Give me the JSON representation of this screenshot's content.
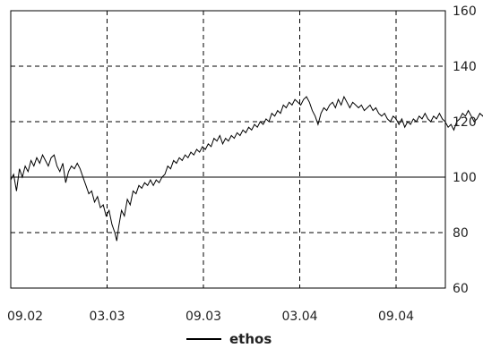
{
  "chart_data": {
    "type": "line",
    "title": "",
    "xlabel": "",
    "ylabel": "",
    "x_ticks": [
      "09.02",
      "03.03",
      "09.03",
      "03.04",
      "09.04"
    ],
    "xlim_index": [
      0,
      5.4
    ],
    "ylim": [
      60,
      160
    ],
    "y_ticks": [
      60,
      80,
      100,
      120,
      140,
      160
    ],
    "reference_line": 100,
    "grid": "dashed",
    "legend": "bottom-center",
    "series": [
      {
        "name": "ethos",
        "color": "#000000",
        "points": [
          [
            0.0,
            99
          ],
          [
            0.03,
            101
          ],
          [
            0.06,
            95
          ],
          [
            0.09,
            103
          ],
          [
            0.12,
            100
          ],
          [
            0.15,
            104
          ],
          [
            0.18,
            102
          ],
          [
            0.21,
            106
          ],
          [
            0.24,
            104
          ],
          [
            0.27,
            107
          ],
          [
            0.3,
            105
          ],
          [
            0.33,
            108
          ],
          [
            0.36,
            106
          ],
          [
            0.39,
            104
          ],
          [
            0.42,
            107
          ],
          [
            0.45,
            108
          ],
          [
            0.48,
            104
          ],
          [
            0.51,
            102
          ],
          [
            0.54,
            105
          ],
          [
            0.57,
            98
          ],
          [
            0.6,
            102
          ],
          [
            0.63,
            104
          ],
          [
            0.66,
            103
          ],
          [
            0.69,
            105
          ],
          [
            0.72,
            103
          ],
          [
            0.75,
            100
          ],
          [
            0.78,
            97
          ],
          [
            0.81,
            94
          ],
          [
            0.84,
            95
          ],
          [
            0.87,
            91
          ],
          [
            0.9,
            93
          ],
          [
            0.93,
            89
          ],
          [
            0.96,
            90
          ],
          [
            0.99,
            86
          ],
          [
            1.02,
            88
          ],
          [
            1.05,
            83
          ],
          [
            1.08,
            80
          ],
          [
            1.1,
            77
          ],
          [
            1.12,
            82
          ],
          [
            1.15,
            88
          ],
          [
            1.18,
            86
          ],
          [
            1.21,
            92
          ],
          [
            1.24,
            90
          ],
          [
            1.27,
            95
          ],
          [
            1.3,
            94
          ],
          [
            1.33,
            97
          ],
          [
            1.36,
            96
          ],
          [
            1.39,
            98
          ],
          [
            1.42,
            97
          ],
          [
            1.45,
            99
          ],
          [
            1.48,
            97
          ],
          [
            1.51,
            99
          ],
          [
            1.54,
            98
          ],
          [
            1.57,
            100
          ],
          [
            1.6,
            101
          ],
          [
            1.63,
            104
          ],
          [
            1.66,
            103
          ],
          [
            1.69,
            106
          ],
          [
            1.72,
            105
          ],
          [
            1.75,
            107
          ],
          [
            1.78,
            106
          ],
          [
            1.81,
            108
          ],
          [
            1.84,
            107
          ],
          [
            1.87,
            109
          ],
          [
            1.9,
            108
          ],
          [
            1.93,
            110
          ],
          [
            1.96,
            109
          ],
          [
            1.99,
            111
          ],
          [
            2.02,
            110
          ],
          [
            2.05,
            112
          ],
          [
            2.08,
            111
          ],
          [
            2.11,
            114
          ],
          [
            2.14,
            113
          ],
          [
            2.17,
            115
          ],
          [
            2.2,
            112
          ],
          [
            2.23,
            114
          ],
          [
            2.26,
            113
          ],
          [
            2.29,
            115
          ],
          [
            2.32,
            114
          ],
          [
            2.35,
            116
          ],
          [
            2.38,
            115
          ],
          [
            2.41,
            117
          ],
          [
            2.44,
            116
          ],
          [
            2.47,
            118
          ],
          [
            2.5,
            117
          ],
          [
            2.53,
            119
          ],
          [
            2.56,
            118
          ],
          [
            2.59,
            120
          ],
          [
            2.62,
            119
          ],
          [
            2.65,
            121
          ],
          [
            2.68,
            120
          ],
          [
            2.71,
            123
          ],
          [
            2.74,
            122
          ],
          [
            2.77,
            124
          ],
          [
            2.8,
            123
          ],
          [
            2.83,
            126
          ],
          [
            2.86,
            125
          ],
          [
            2.89,
            127
          ],
          [
            2.92,
            126
          ],
          [
            2.95,
            128
          ],
          [
            2.98,
            127
          ],
          [
            3.01,
            126
          ],
          [
            3.04,
            128
          ],
          [
            3.07,
            129
          ],
          [
            3.1,
            127
          ],
          [
            3.13,
            124
          ],
          [
            3.16,
            122
          ],
          [
            3.19,
            119
          ],
          [
            3.22,
            123
          ],
          [
            3.25,
            125
          ],
          [
            3.28,
            124
          ],
          [
            3.31,
            126
          ],
          [
            3.34,
            127
          ],
          [
            3.37,
            125
          ],
          [
            3.4,
            128
          ],
          [
            3.43,
            126
          ],
          [
            3.46,
            129
          ],
          [
            3.49,
            127
          ],
          [
            3.52,
            125
          ],
          [
            3.55,
            127
          ],
          [
            3.58,
            126
          ],
          [
            3.61,
            125
          ],
          [
            3.64,
            126
          ],
          [
            3.67,
            124
          ],
          [
            3.7,
            125
          ],
          [
            3.73,
            126
          ],
          [
            3.76,
            124
          ],
          [
            3.79,
            125
          ],
          [
            3.82,
            123
          ],
          [
            3.85,
            122
          ],
          [
            3.88,
            123
          ],
          [
            3.91,
            121
          ],
          [
            3.94,
            120
          ],
          [
            3.97,
            122
          ],
          [
            4.0,
            121
          ],
          [
            4.03,
            119
          ],
          [
            4.06,
            121
          ],
          [
            4.09,
            118
          ],
          [
            4.12,
            120
          ],
          [
            4.15,
            119
          ],
          [
            4.18,
            121
          ],
          [
            4.21,
            120
          ],
          [
            4.24,
            122
          ],
          [
            4.27,
            121
          ],
          [
            4.3,
            123
          ],
          [
            4.33,
            121
          ],
          [
            4.36,
            120
          ],
          [
            4.39,
            122
          ],
          [
            4.42,
            121
          ],
          [
            4.45,
            123
          ],
          [
            4.48,
            121
          ],
          [
            4.51,
            120
          ],
          [
            4.54,
            118
          ],
          [
            4.57,
            119
          ],
          [
            4.6,
            117
          ],
          [
            4.63,
            120
          ],
          [
            4.66,
            121
          ],
          [
            4.69,
            123
          ],
          [
            4.72,
            122
          ],
          [
            4.75,
            124
          ],
          [
            4.78,
            122
          ],
          [
            4.81,
            120
          ],
          [
            4.84,
            121
          ],
          [
            4.87,
            123
          ],
          [
            4.9,
            122
          ],
          [
            4.93,
            124
          ],
          [
            4.96,
            123
          ],
          [
            4.99,
            125
          ],
          [
            5.02,
            124
          ],
          [
            5.05,
            126
          ],
          [
            5.08,
            124
          ],
          [
            5.11,
            123
          ],
          [
            5.14,
            125
          ],
          [
            5.17,
            124
          ],
          [
            5.2,
            126
          ],
          [
            5.23,
            125
          ],
          [
            5.26,
            126
          ],
          [
            5.29,
            125
          ],
          [
            5.32,
            127
          ],
          [
            5.35,
            126
          ],
          [
            5.38,
            127
          ]
        ]
      }
    ]
  }
}
